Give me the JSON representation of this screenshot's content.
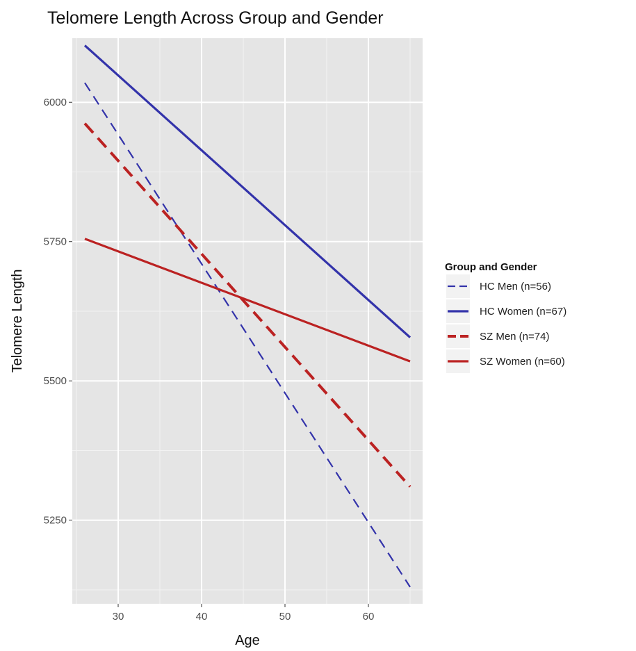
{
  "chart_data": {
    "type": "line",
    "title": "Telomere Length Across Group and Gender",
    "xlabel": "Age",
    "ylabel": "Telomere Length",
    "xlim": [
      24.5,
      66.5
    ],
    "ylim": [
      5100,
      6115
    ],
    "x_ticks": [
      30,
      40,
      50,
      60
    ],
    "y_ticks": [
      5250,
      5500,
      5750,
      6000
    ],
    "grid": true,
    "legend": {
      "title": "Group and Gender",
      "placement": "right"
    },
    "series": [
      {
        "name": "HC Men (n=56)",
        "color": "#3333aa",
        "line": "dashed-thin",
        "x": [
          26,
          65
        ],
        "y": [
          6035,
          5130
        ]
      },
      {
        "name": "HC Women (n=67)",
        "color": "#3333aa",
        "line": "solid",
        "x": [
          26,
          65
        ],
        "y": [
          6102,
          5578
        ]
      },
      {
        "name": "SZ Men (n=74)",
        "color": "#bb2222",
        "line": "dashed-thick",
        "x": [
          26,
          65
        ],
        "y": [
          5962,
          5310
        ]
      },
      {
        "name": "SZ Women (n=60)",
        "color": "#bb2222",
        "line": "solid",
        "x": [
          26,
          65
        ],
        "y": [
          5755,
          5535
        ]
      }
    ]
  }
}
